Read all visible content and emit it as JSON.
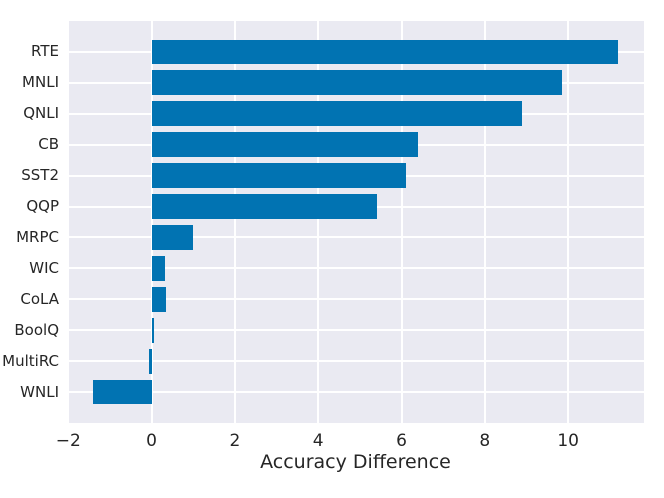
{
  "chart_data": {
    "type": "bar",
    "orientation": "horizontal",
    "title": "",
    "xlabel": "Accuracy Difference",
    "ylabel": "",
    "categories": [
      "RTE",
      "MNLI",
      "QNLI",
      "CB",
      "SST2",
      "QQP",
      "MRPC",
      "WIC",
      "CoLA",
      "BoolQ",
      "MultiRC",
      "WNLI"
    ],
    "values": [
      11.2,
      9.85,
      8.9,
      6.4,
      6.1,
      5.4,
      1.0,
      0.33,
      0.34,
      0.05,
      -0.05,
      -1.4
    ],
    "xlim": [
      -2.03,
      11.82
    ],
    "ylim": [
      -1,
      12
    ],
    "xticks": [
      -2,
      0,
      2,
      4,
      6,
      8,
      10
    ],
    "xtick_labels": [
      "−2",
      "0",
      "2",
      "4",
      "6",
      "8",
      "10"
    ],
    "bar_rel_height": 0.8,
    "grid": true,
    "legend": false,
    "style": "seaborn-darkgrid",
    "bar_color": "#0173b2",
    "plot_bg_color": "#eaeaf2",
    "grid_color": "#ffffff",
    "text_color": "#262626"
  }
}
